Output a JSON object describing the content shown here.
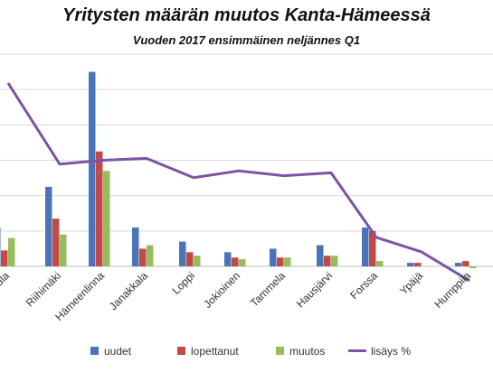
{
  "title": "Yritysten määrän muutos Kanta-Hämeessä",
  "subtitle": "Vuoden 2017 ensimmäinen neljännes Q1",
  "colors": {
    "uudet": "#4a74b7",
    "lopettanut": "#c24a46",
    "muutos": "#95bd5a",
    "lisays": "#7b54a3",
    "grid": "#d9d9d9"
  },
  "chart_data": {
    "type": "bar",
    "title": "Yritysten määrän muutos Kanta-Hämeessä",
    "subtitle": "Vuoden 2017 ensimmäinen neljännes Q1",
    "categories": [
      "…ula",
      "Riihimäki",
      "Hämeenlinna",
      "Janakkala",
      "Loppi",
      "Jokioinen",
      "Tammela",
      "Hausjärvi",
      "Forssa",
      "Ypäjä",
      "Humppila"
    ],
    "series": [
      {
        "name": "uudet",
        "type": "bar",
        "axis": "left",
        "values": [
          22,
          45,
          110,
          22,
          14,
          8,
          10,
          12,
          22,
          2,
          2
        ]
      },
      {
        "name": "lopettanut",
        "type": "bar",
        "axis": "left",
        "values": [
          9,
          27,
          65,
          10,
          8,
          5,
          5,
          6,
          20,
          2,
          3
        ]
      },
      {
        "name": "muutos",
        "type": "bar",
        "axis": "left",
        "values": [
          16,
          18,
          54,
          12,
          6,
          4,
          5,
          6,
          3,
          0,
          -1
        ]
      },
      {
        "name": "lisäys %",
        "type": "line",
        "axis": "right",
        "values": [
          1.9,
          1.06,
          1.1,
          1.12,
          0.92,
          0.99,
          0.94,
          0.97,
          0.3,
          0.15,
          -0.15
        ]
      }
    ],
    "ylim_left": [
      0,
      120
    ],
    "ylim_right": [
      -0.2,
      2.2
    ],
    "grid": true,
    "legend": "bottom"
  },
  "legend_labels": {
    "uudet": "uudet",
    "lopettanut": "lopettanut",
    "muutos": "muutos",
    "lisays": "lisäys %"
  }
}
